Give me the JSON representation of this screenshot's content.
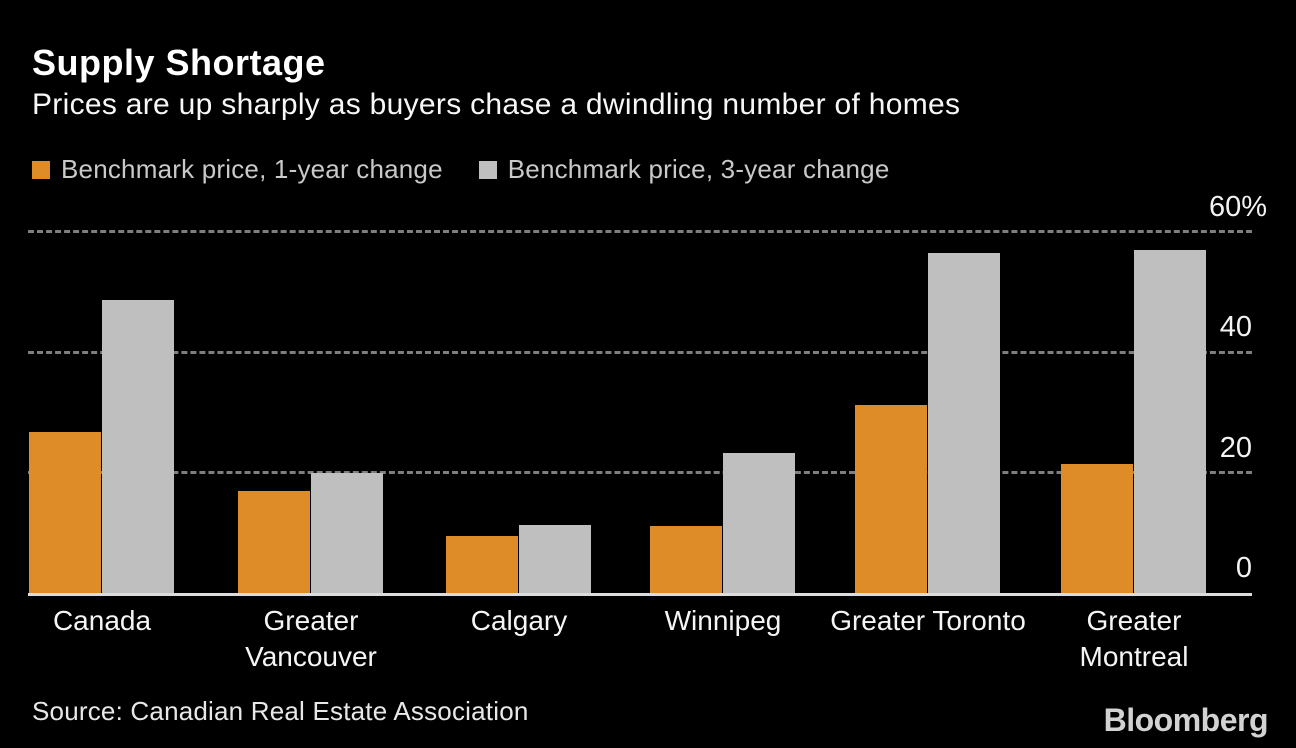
{
  "header": {
    "title": "Supply Shortage",
    "subtitle": "Prices are up sharply as buyers chase a dwindling number of homes"
  },
  "legend": [
    {
      "label": "Benchmark price, 1-year change",
      "color": "#dd8c28"
    },
    {
      "label": "Benchmark price, 3-year change",
      "color": "#bfbfbf"
    }
  ],
  "chart_data": {
    "type": "bar",
    "title": "Supply Shortage",
    "subtitle": "Prices are up sharply as buyers chase a dwindling number of homes",
    "categories": [
      "Canada",
      "Greater Vancouver",
      "Calgary",
      "Winnipeg",
      "Greater Toronto",
      "Greater Montreal"
    ],
    "series": [
      {
        "name": "Benchmark price, 1-year change",
        "color": "#dd8c28",
        "values": [
          26.7,
          16.9,
          9.4,
          11.2,
          31.2,
          21.4
        ]
      },
      {
        "name": "Benchmark price, 3-year change",
        "color": "#bfbfbf",
        "values": [
          48.7,
          20.0,
          11.3,
          23.2,
          56.4,
          56.9
        ]
      }
    ],
    "xlabel": "",
    "ylabel": "",
    "unit": "%",
    "ylim": [
      0,
      60
    ],
    "y_ticks": [
      {
        "value": 60,
        "label": "60%"
      },
      {
        "value": 40,
        "label": "40"
      },
      {
        "value": 20,
        "label": "20"
      },
      {
        "value": 0,
        "label": "0"
      }
    ],
    "grid": "horizontal-dashed",
    "legend_position": "top-left",
    "background": "#000000"
  },
  "colors": {
    "background": "#000000",
    "bar_1yr": "#dd8c28",
    "bar_3yr": "#bfbfbf",
    "gridline": "#7e7e7e",
    "axis_line": "#dcdcdc",
    "text_primary": "#ffffff",
    "text_secondary": "#c9c9c9"
  },
  "footer": {
    "source": "Source: Canadian Real Estate Association",
    "brand": "Bloomberg"
  }
}
